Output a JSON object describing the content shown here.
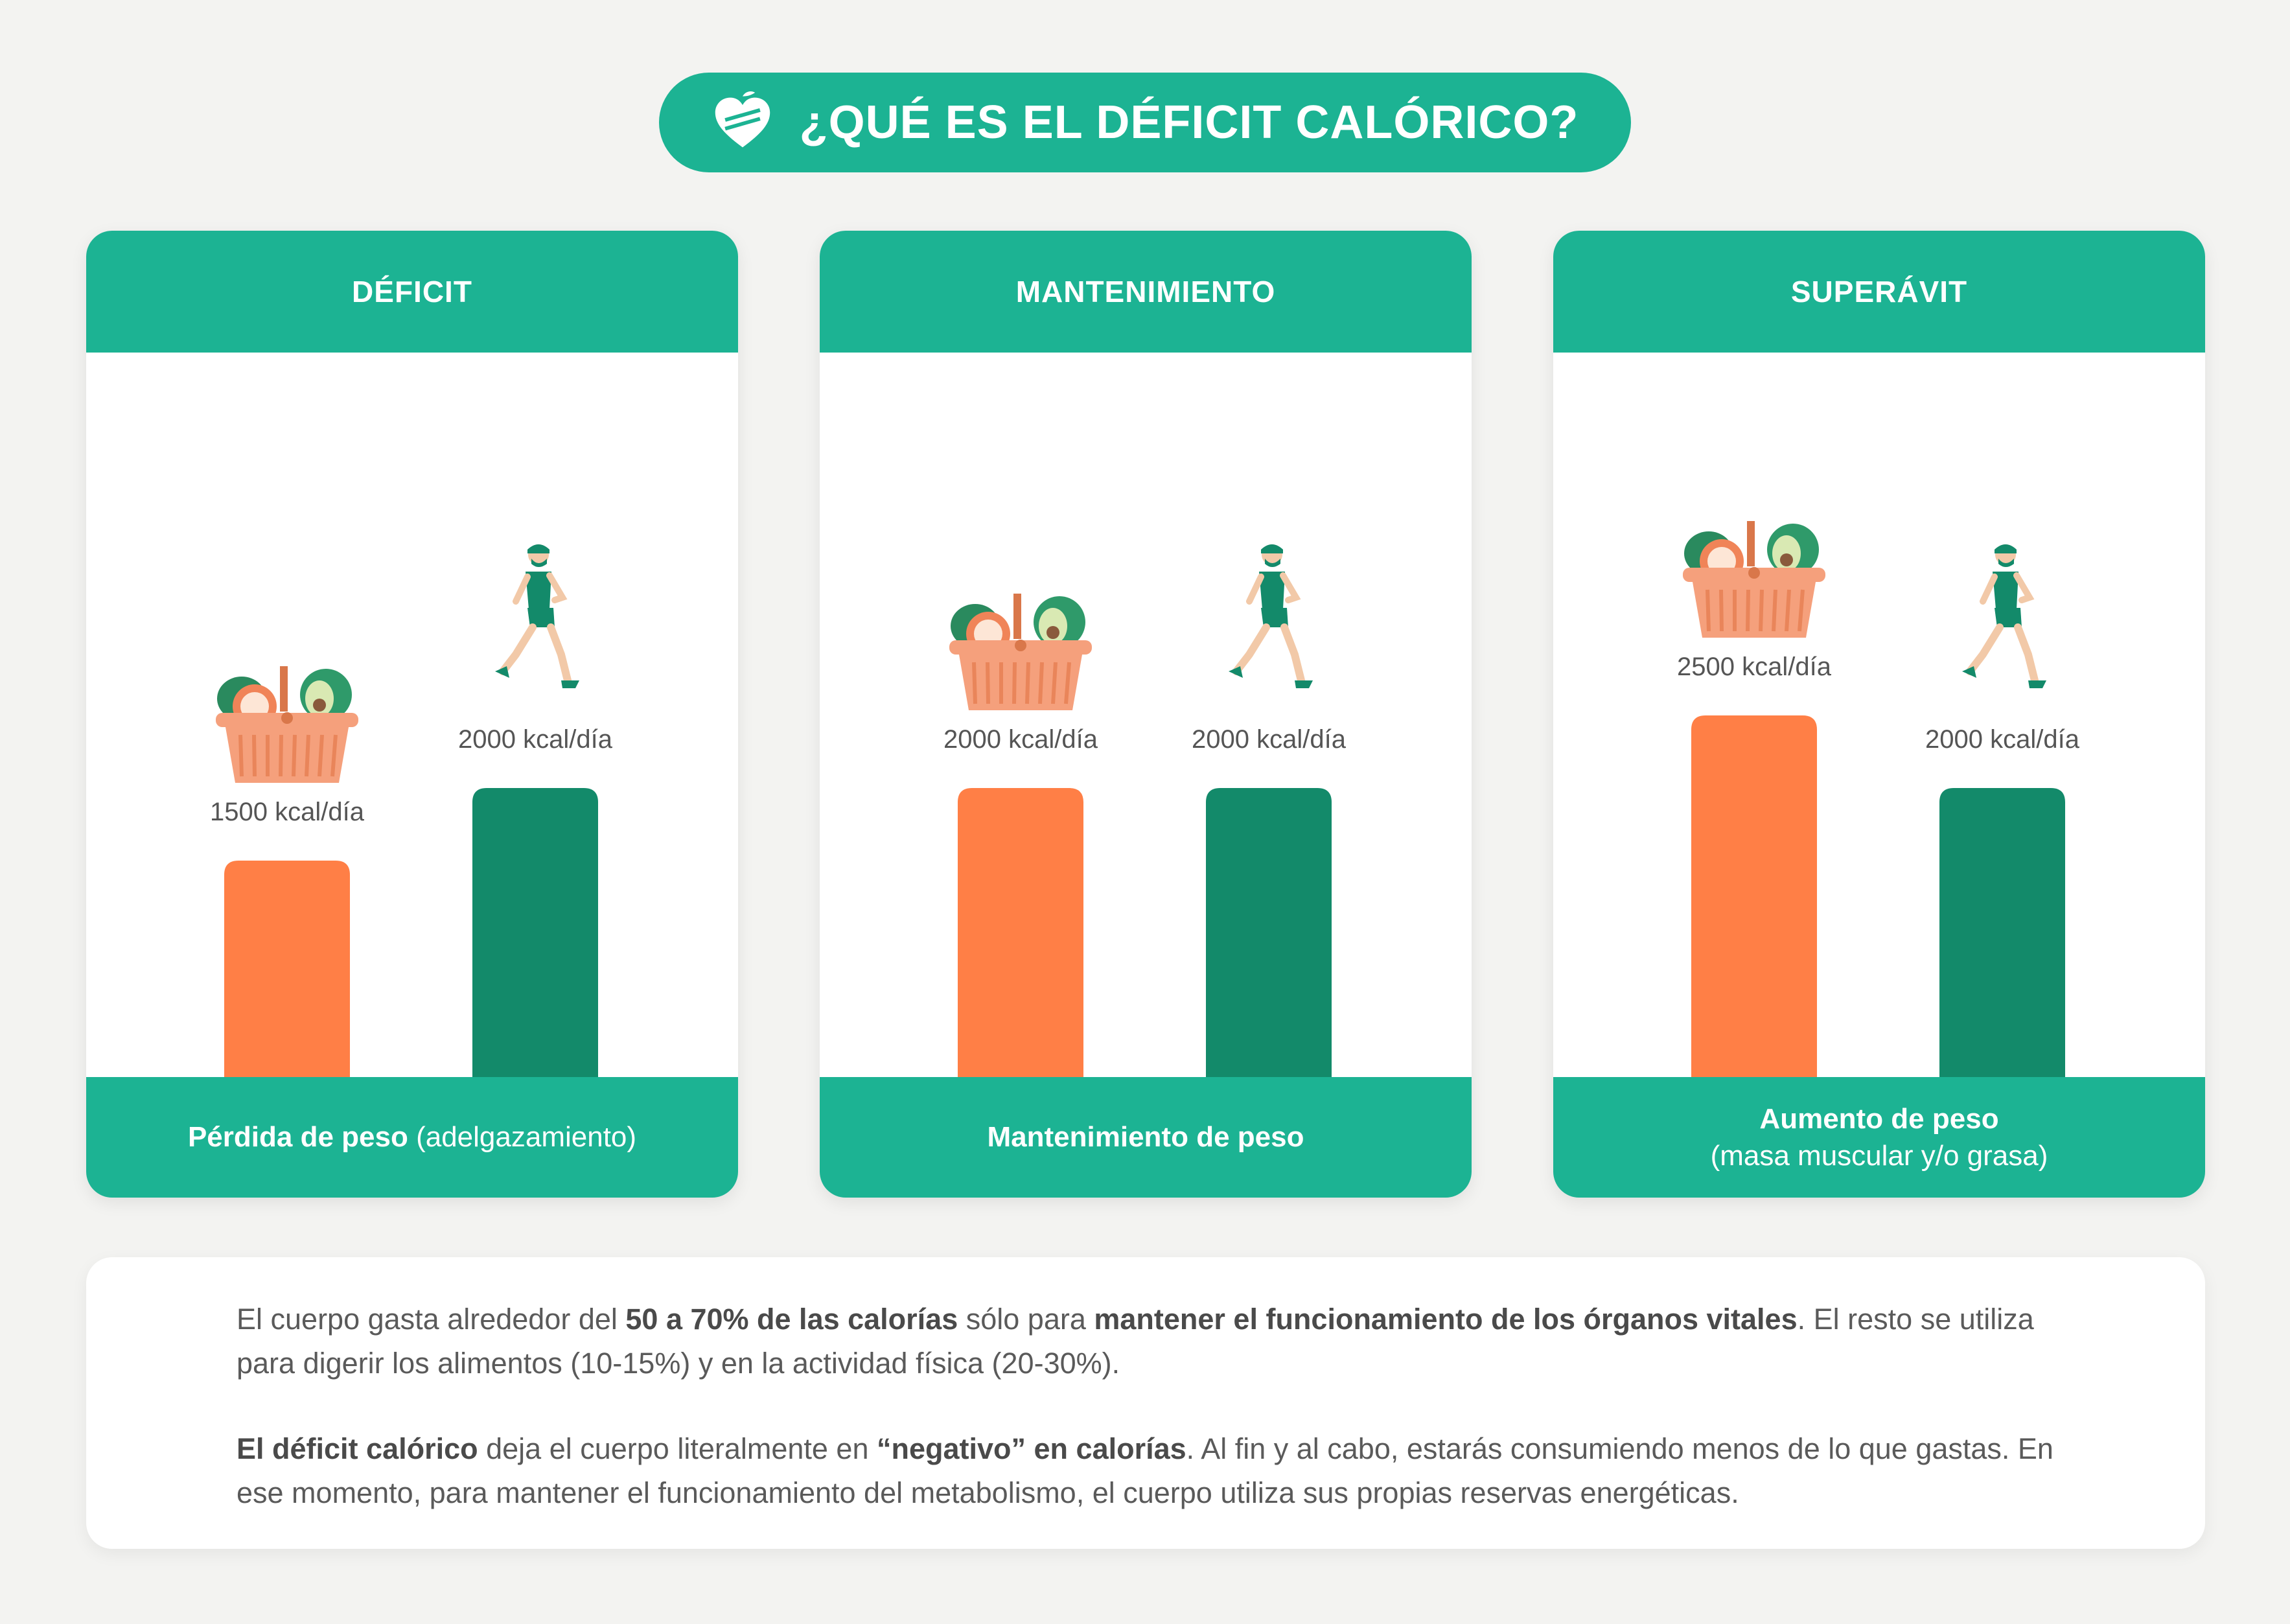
{
  "title": "¿QUÉ ES EL DÉFICIT CALÓRICO?",
  "colors": {
    "teal": "#1cb393",
    "ingesta": "#ff7f46",
    "gasto": "#138a6a",
    "basket": "#f5a07c"
  },
  "icons": [
    "heart-leaf-logo-icon",
    "food-basket-icon",
    "runner-icon"
  ],
  "cards": [
    {
      "header": "DÉFICIT",
      "footer_strong": "Pérdida de peso",
      "footer_light": "(adelgazamiento)"
    },
    {
      "header": "MANTENIMIENTO",
      "footer_strong": "Mantenimiento  de peso",
      "footer_light": ""
    },
    {
      "header": "SUPERÁVIT",
      "footer_strong": "Aumento de peso",
      "footer_light": "(masa muscular y/o grasa)"
    }
  ],
  "chart_data": [
    {
      "type": "bar",
      "title": "DÉFICIT",
      "categories": [
        "INGESTA",
        "GASTO"
      ],
      "values": [
        1500,
        2000
      ],
      "value_labels": [
        "1500 kcal/día",
        "2000 kcal/día"
      ],
      "colors": [
        "#ff7f46",
        "#138a6a"
      ],
      "ylim": [
        0,
        2500
      ],
      "grid": false
    },
    {
      "type": "bar",
      "title": "MANTENIMIENTO",
      "categories": [
        "INGESTA",
        "GASTO"
      ],
      "values": [
        2000,
        2000
      ],
      "value_labels": [
        "2000 kcal/día",
        "2000 kcal/día"
      ],
      "colors": [
        "#ff7f46",
        "#138a6a"
      ],
      "ylim": [
        0,
        2500
      ],
      "grid": false
    },
    {
      "type": "bar",
      "title": "SUPERÁVIT",
      "categories": [
        "INGESTA",
        "GASTO"
      ],
      "values": [
        2500,
        2000
      ],
      "value_labels": [
        "2500 kcal/día",
        "2000 kcal/día"
      ],
      "colors": [
        "#ff7f46",
        "#138a6a"
      ],
      "ylim": [
        0,
        2500
      ],
      "grid": false
    }
  ],
  "info": {
    "p1_a": "El cuerpo gasta alrededor del ",
    "p1_b": "50 a 70% de las calorías",
    "p1_c": " sólo para ",
    "p1_d": "mantener el funcionamiento de los órganos vitales",
    "p1_e": ". El resto se utiliza para digerir los  alimentos (10-15%) y en la actividad física (20-30%).",
    "p2_a": "El déficit calórico",
    "p2_b": " deja el cuerpo literalmente en ",
    "p2_c": "“negativo” en calorías",
    "p2_d": ". Al fin y al cabo, estarás consumiendo menos de lo que gastas. En ese momento, para mantener el funcionamiento del metabolismo, el cuerpo utiliza sus propias reservas energéticas."
  }
}
